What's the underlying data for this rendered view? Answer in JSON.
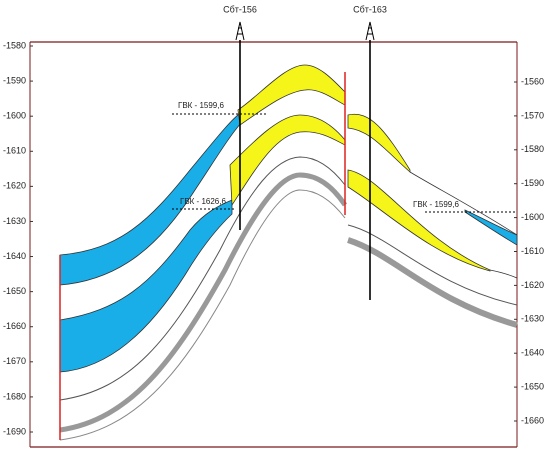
{
  "wells": [
    {
      "label": "Сбт-156"
    },
    {
      "label": "Сбт-163"
    }
  ],
  "contacts": [
    {
      "label": "ГВК - 1599,6"
    },
    {
      "label": "ГВК - 1626,6"
    },
    {
      "label": "ГВК - 1599,6"
    }
  ],
  "left_axis": {
    "ticks": [
      -1580,
      -1590,
      -1600,
      -1610,
      -1620,
      -1630,
      -1640,
      -1650,
      -1660,
      -1670,
      -1680,
      -1690
    ]
  },
  "right_axis": {
    "ticks": [
      -1560,
      -1570,
      -1580,
      -1590,
      -1600,
      -1610,
      -1620,
      -1630,
      -1640,
      -1650,
      -1660
    ]
  }
}
